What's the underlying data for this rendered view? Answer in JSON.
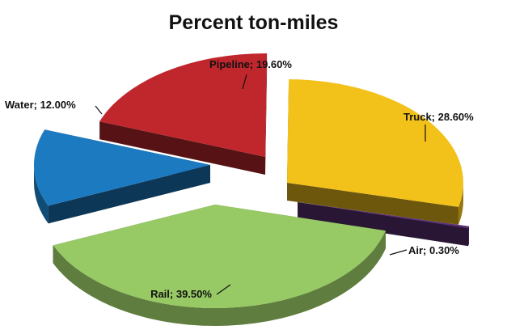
{
  "chart_data": {
    "type": "pie",
    "title": "Percent ton-miles",
    "slices": [
      {
        "name": "Pipeline",
        "value": 19.6,
        "label": "Pipeline; 19.60%",
        "color": "#C0272D"
      },
      {
        "name": "Truck",
        "value": 28.6,
        "label": "Truck; 28.60%",
        "color": "#F2C21B"
      },
      {
        "name": "Air",
        "value": 0.3,
        "label": "Air; 0.30%",
        "color": "#5B3175"
      },
      {
        "name": "Rail",
        "value": 39.5,
        "label": "Rail; 39.50%",
        "color": "#97C964"
      },
      {
        "name": "Water",
        "value": 12.0,
        "label": "Water; 12.00%",
        "color": "#1C7AC0"
      }
    ],
    "style": "3d-exploded"
  }
}
